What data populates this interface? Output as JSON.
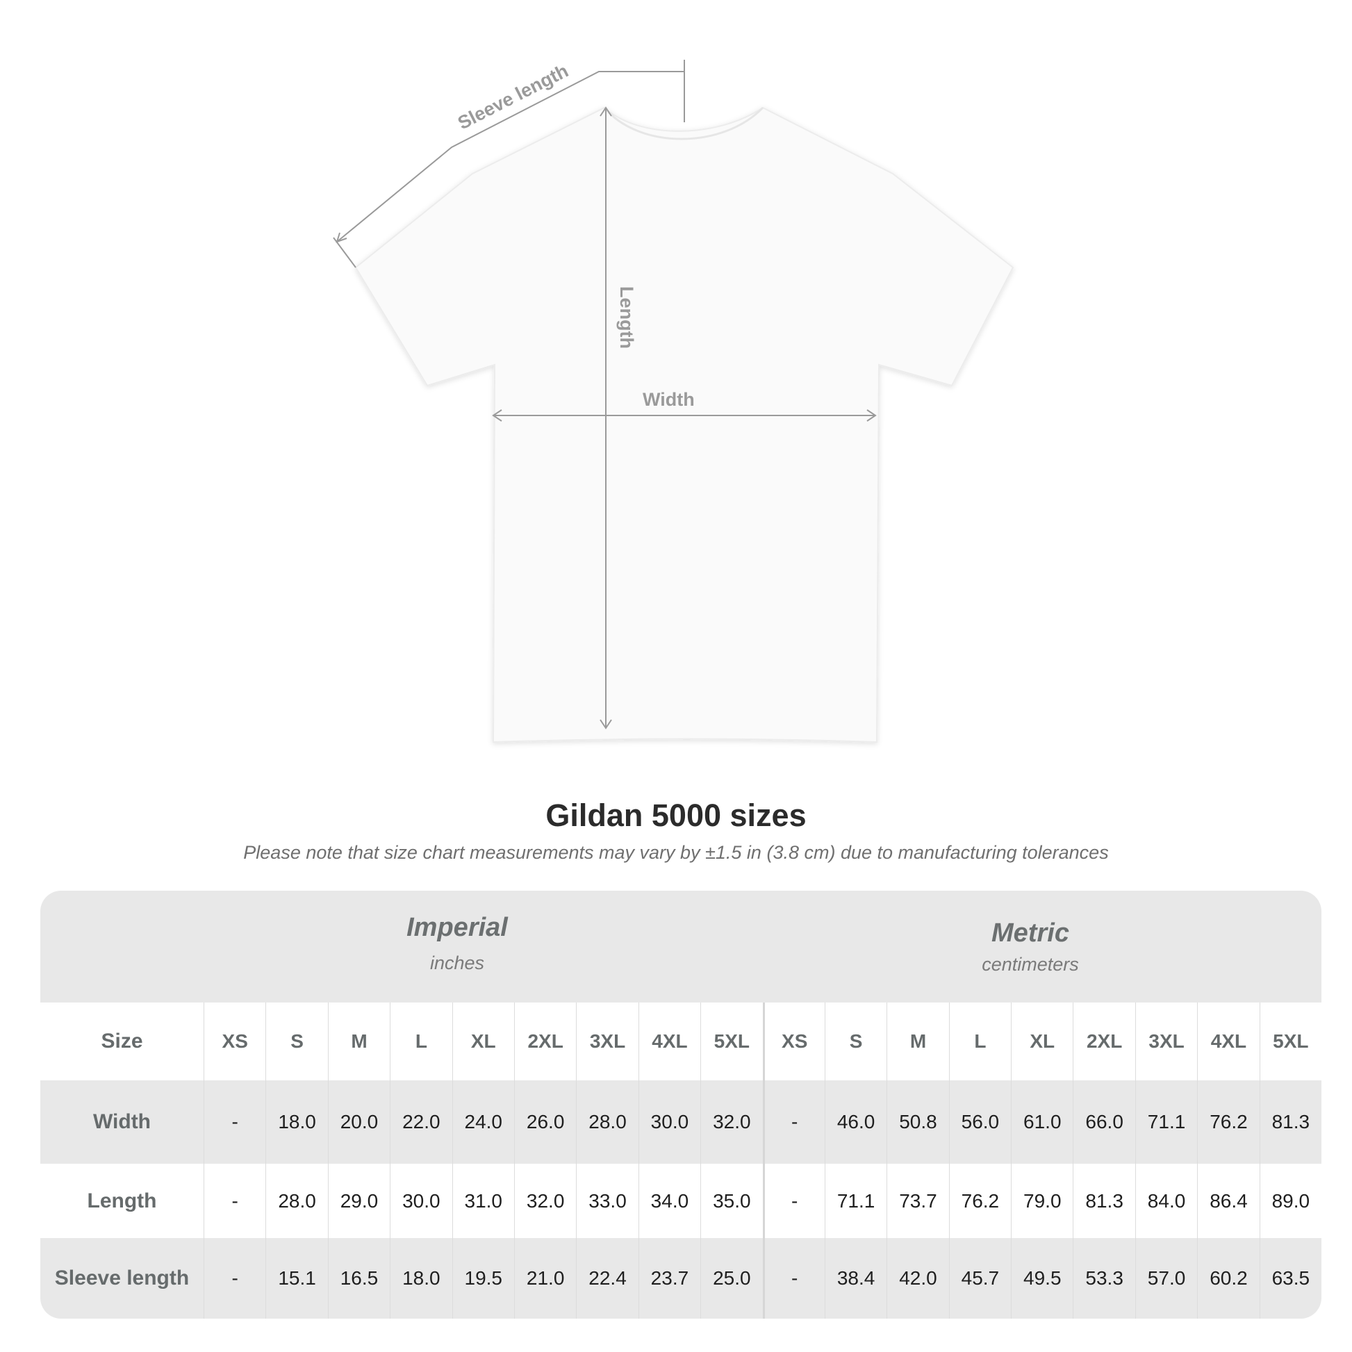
{
  "diagram": {
    "sleeve_label": "Sleeve length",
    "length_label": "Length",
    "width_label": "Width"
  },
  "title": "Gildan 5000 sizes",
  "subtitle": "Please note that size chart measurements may vary by ±1.5 in (3.8 cm) due to manufacturing tolerances",
  "table": {
    "imperial": {
      "name": "Imperial",
      "unit": "inches"
    },
    "metric": {
      "name": "Metric",
      "unit": "centimeters"
    },
    "size_label": "Size",
    "sizes": [
      "XS",
      "S",
      "M",
      "L",
      "XL",
      "2XL",
      "3XL",
      "4XL",
      "5XL"
    ],
    "rows": [
      {
        "label": "Width",
        "imperial": [
          "-",
          "18.0",
          "20.0",
          "22.0",
          "24.0",
          "26.0",
          "28.0",
          "30.0",
          "32.0"
        ],
        "metric": [
          "-",
          "46.0",
          "50.8",
          "56.0",
          "61.0",
          "66.0",
          "71.1",
          "76.2",
          "81.3"
        ]
      },
      {
        "label": "Length",
        "imperial": [
          "-",
          "28.0",
          "29.0",
          "30.0",
          "31.0",
          "32.0",
          "33.0",
          "34.0",
          "35.0"
        ],
        "metric": [
          "-",
          "71.1",
          "73.7",
          "76.2",
          "79.0",
          "81.3",
          "84.0",
          "86.4",
          "89.0"
        ]
      },
      {
        "label": "Sleeve length",
        "imperial": [
          "-",
          "15.1",
          "16.5",
          "18.0",
          "19.5",
          "21.0",
          "22.4",
          "23.7",
          "25.0"
        ],
        "metric": [
          "-",
          "38.4",
          "42.0",
          "45.7",
          "49.5",
          "53.3",
          "57.0",
          "60.2",
          "63.5"
        ]
      }
    ]
  },
  "colors": {
    "band": "#e8e8e8",
    "label": "#666b6c",
    "arrow": "#9a9a9a"
  }
}
